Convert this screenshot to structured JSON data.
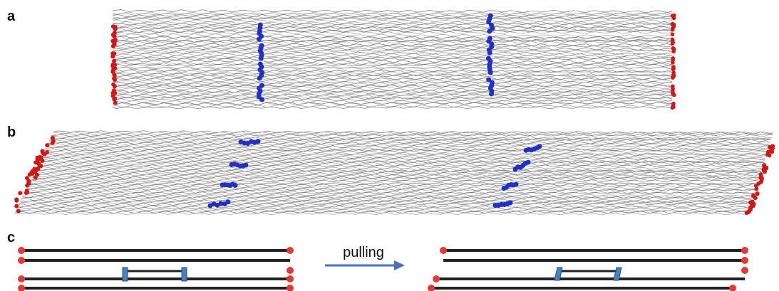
{
  "panels": [
    {
      "label": "a"
    },
    {
      "label": "b"
    },
    {
      "label": "c"
    }
  ],
  "arrow_label": "pulling"
}
